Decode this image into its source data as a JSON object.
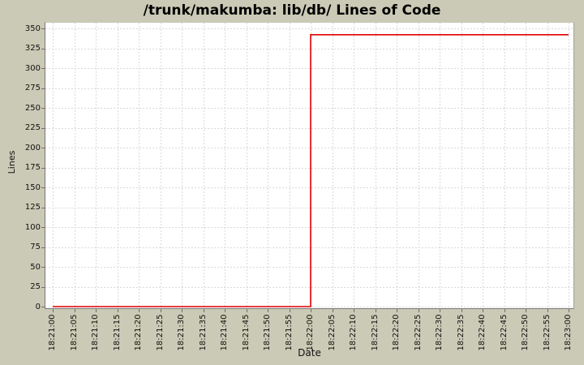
{
  "chart_data": {
    "type": "line",
    "subtype": "step",
    "title": "/trunk/makumba: lib/db/ Lines of Code",
    "xlabel": "Date",
    "ylabel": "Lines",
    "x_ticks": [
      "18:21:00",
      "18:21:05",
      "18:21:10",
      "18:21:15",
      "18:21:20",
      "18:21:25",
      "18:21:30",
      "18:21:35",
      "18:21:40",
      "18:21:45",
      "18:21:50",
      "18:21:55",
      "18:22:00",
      "18:22:05",
      "18:22:10",
      "18:22:15",
      "18:22:20",
      "18:22:25",
      "18:22:30",
      "18:22:35",
      "18:22:40",
      "18:22:45",
      "18:22:50",
      "18:22:55",
      "18:23:00"
    ],
    "y_ticks": [
      0,
      25,
      50,
      75,
      100,
      125,
      150,
      175,
      200,
      225,
      250,
      275,
      300,
      325,
      350
    ],
    "ylim": [
      0,
      357
    ],
    "grid": true,
    "legend": "none",
    "series": [
      {
        "name": "lib/db/ lines of code",
        "color": "#e00000",
        "points": [
          {
            "t": "18:21:00",
            "v": 0
          },
          {
            "t": "18:22:00",
            "v": 0
          },
          {
            "t": "18:22:00",
            "v": 342
          },
          {
            "t": "18:23:00",
            "v": 342
          }
        ]
      }
    ],
    "colors": {
      "background": "#cbcab6",
      "plot_background": "#ffffff",
      "gridline": "#d9d9d9",
      "axis": "#6f6f6f",
      "text": "#111111"
    }
  }
}
